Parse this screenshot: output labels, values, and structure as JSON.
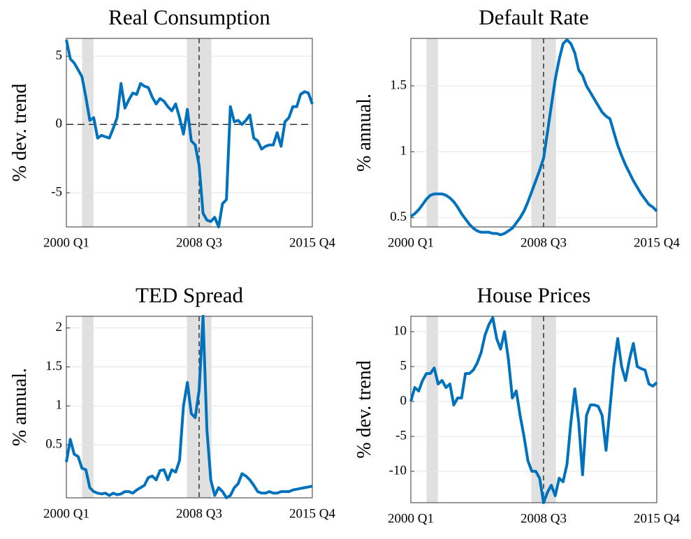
{
  "chart_data": [
    {
      "type": "line",
      "title": "Real Consumption",
      "y_label": "% dev. trend",
      "color": "#0072bd",
      "grid": true,
      "reference_line": 0,
      "categories": [
        "2000 Q1",
        null,
        null,
        null,
        null,
        null,
        null,
        null,
        null,
        null,
        null,
        null,
        null,
        null,
        null,
        null,
        null,
        null,
        null,
        null,
        null,
        null,
        null,
        null,
        null,
        null,
        null,
        null,
        null,
        null,
        null,
        null,
        null,
        null,
        "2008 Q3",
        null,
        null,
        null,
        null,
        null,
        null,
        null,
        null,
        null,
        null,
        null,
        null,
        null,
        null,
        null,
        null,
        null,
        null,
        null,
        null,
        null,
        null,
        null,
        null,
        null,
        null,
        null,
        null,
        "2015 Q4"
      ],
      "values": [
        6.2,
        4.8,
        4.5,
        4.0,
        3.5,
        2.0,
        0.3,
        0.5,
        -1.0,
        -0.8,
        -0.9,
        -1.0,
        -0.3,
        0.5,
        3.0,
        1.2,
        1.8,
        2.3,
        2.2,
        3.0,
        2.8,
        2.7,
        2.0,
        1.5,
        1.9,
        1.7,
        1.3,
        1.0,
        1.5,
        0.5,
        -0.7,
        1.1,
        -1.2,
        -1.5,
        -3.0,
        -6.5,
        -7.0,
        -7.1,
        -6.8,
        -7.5,
        -5.8,
        -5.5,
        1.3,
        0.2,
        0.3,
        0.0,
        0.3,
        0.7,
        -1.0,
        -1.2,
        -1.8,
        -1.6,
        -1.5,
        -1.5,
        -0.6,
        -1.6,
        0.2,
        0.5,
        1.3,
        1.3,
        2.2,
        2.4,
        2.3,
        1.5
      ],
      "ylim": [
        -7.5,
        6.3
      ],
      "yticks": [
        -5,
        0,
        5
      ]
    },
    {
      "type": "line",
      "title": "Default Rate",
      "y_label": "% annual.",
      "color": "#0072bd",
      "grid": true,
      "categories": [
        "2000 Q1",
        null,
        null,
        null,
        null,
        null,
        null,
        null,
        null,
        null,
        null,
        null,
        null,
        null,
        null,
        null,
        null,
        null,
        null,
        null,
        null,
        null,
        null,
        null,
        null,
        null,
        null,
        null,
        null,
        null,
        null,
        null,
        null,
        null,
        "2008 Q3",
        null,
        null,
        null,
        null,
        null,
        null,
        null,
        null,
        null,
        null,
        null,
        null,
        null,
        null,
        null,
        null,
        null,
        null,
        null,
        null,
        null,
        null,
        null,
        null,
        null,
        null,
        null,
        null,
        "2015 Q4"
      ],
      "values": [
        0.51,
        0.53,
        0.56,
        0.6,
        0.64,
        0.67,
        0.68,
        0.68,
        0.68,
        0.67,
        0.65,
        0.62,
        0.58,
        0.53,
        0.49,
        0.45,
        0.42,
        0.4,
        0.39,
        0.39,
        0.39,
        0.38,
        0.38,
        0.37,
        0.38,
        0.4,
        0.42,
        0.46,
        0.5,
        0.55,
        0.62,
        0.7,
        0.78,
        0.86,
        0.95,
        1.15,
        1.35,
        1.55,
        1.7,
        1.82,
        1.85,
        1.82,
        1.75,
        1.62,
        1.58,
        1.5,
        1.45,
        1.4,
        1.35,
        1.3,
        1.27,
        1.25,
        1.15,
        1.05,
        0.97,
        0.9,
        0.84,
        0.78,
        0.73,
        0.68,
        0.64,
        0.6,
        0.58,
        0.55
      ],
      "ylim": [
        0.43,
        1.86
      ],
      "yticks": [
        0.5,
        1,
        1.5
      ]
    },
    {
      "type": "line",
      "title": "TED Spread",
      "y_label": "% annual.",
      "color": "#0072bd",
      "grid": true,
      "categories": [
        "2000 Q1",
        null,
        null,
        null,
        null,
        null,
        null,
        null,
        null,
        null,
        null,
        null,
        null,
        null,
        null,
        null,
        null,
        null,
        null,
        null,
        null,
        null,
        null,
        null,
        null,
        null,
        null,
        null,
        null,
        null,
        null,
        null,
        null,
        null,
        "2008 Q3",
        null,
        null,
        null,
        null,
        null,
        null,
        null,
        null,
        null,
        null,
        null,
        null,
        null,
        null,
        null,
        null,
        null,
        null,
        null,
        null,
        null,
        null,
        null,
        null,
        null,
        null,
        null,
        null,
        "2015 Q4"
      ],
      "values": [
        0.28,
        0.57,
        0.38,
        0.35,
        0.2,
        0.18,
        -0.05,
        -0.1,
        -0.12,
        -0.13,
        -0.12,
        -0.15,
        -0.12,
        -0.14,
        -0.13,
        -0.1,
        -0.1,
        -0.12,
        -0.08,
        -0.05,
        -0.02,
        0.08,
        0.1,
        0.05,
        0.17,
        0.18,
        0.05,
        0.18,
        0.15,
        0.3,
        1.0,
        1.3,
        0.9,
        0.85,
        1.2,
        2.15,
        0.7,
        0.05,
        -0.15,
        -0.05,
        -0.1,
        -0.18,
        -0.15,
        -0.05,
        0.0,
        0.13,
        0.1,
        0.05,
        -0.02,
        -0.1,
        -0.12,
        -0.12,
        -0.1,
        -0.12,
        -0.12,
        -0.1,
        -0.1,
        -0.1,
        -0.08,
        -0.07,
        -0.06,
        -0.05,
        -0.04,
        -0.03
      ],
      "ylim": [
        -0.18,
        2.15
      ],
      "yticks": [
        0.5,
        1,
        1.5,
        2
      ]
    },
    {
      "type": "line",
      "title": "House Prices",
      "y_label": "% dev. trend",
      "color": "#0072bd",
      "grid": true,
      "categories": [
        "2000 Q1",
        null,
        null,
        null,
        null,
        null,
        null,
        null,
        null,
        null,
        null,
        null,
        null,
        null,
        null,
        null,
        null,
        null,
        null,
        null,
        null,
        null,
        null,
        null,
        null,
        null,
        null,
        null,
        null,
        null,
        null,
        null,
        null,
        null,
        "2008 Q3",
        null,
        null,
        null,
        null,
        null,
        null,
        null,
        null,
        null,
        null,
        null,
        null,
        null,
        null,
        null,
        null,
        null,
        null,
        null,
        null,
        null,
        null,
        null,
        null,
        null,
        null,
        null,
        null,
        "2015 Q4"
      ],
      "values": [
        0.0,
        2.0,
        1.5,
        3.0,
        4.0,
        4.0,
        4.8,
        2.5,
        3.0,
        2.0,
        2.5,
        -0.5,
        0.5,
        0.5,
        4.0,
        4.0,
        4.5,
        5.5,
        7.0,
        9.5,
        11.0,
        12.0,
        9.0,
        7.5,
        10.0,
        6.0,
        0.5,
        1.5,
        -2.0,
        -5.0,
        -8.5,
        -10.0,
        -10.0,
        -11.0,
        -14.5,
        -13.0,
        -12.0,
        -13.5,
        -11.0,
        -11.5,
        -9.0,
        -3.0,
        1.8,
        -3.0,
        -10.5,
        -2.0,
        -0.5,
        -0.5,
        -0.7,
        -2.0,
        -7.0,
        -1.0,
        5.0,
        9.0,
        5.0,
        3.0,
        6.0,
        8.3,
        5.0,
        4.7,
        4.5,
        2.5,
        2.2,
        2.7
      ],
      "ylim": [
        -14.5,
        12.2
      ],
      "yticks": [
        -10,
        -5,
        0,
        5,
        10
      ]
    }
  ]
}
